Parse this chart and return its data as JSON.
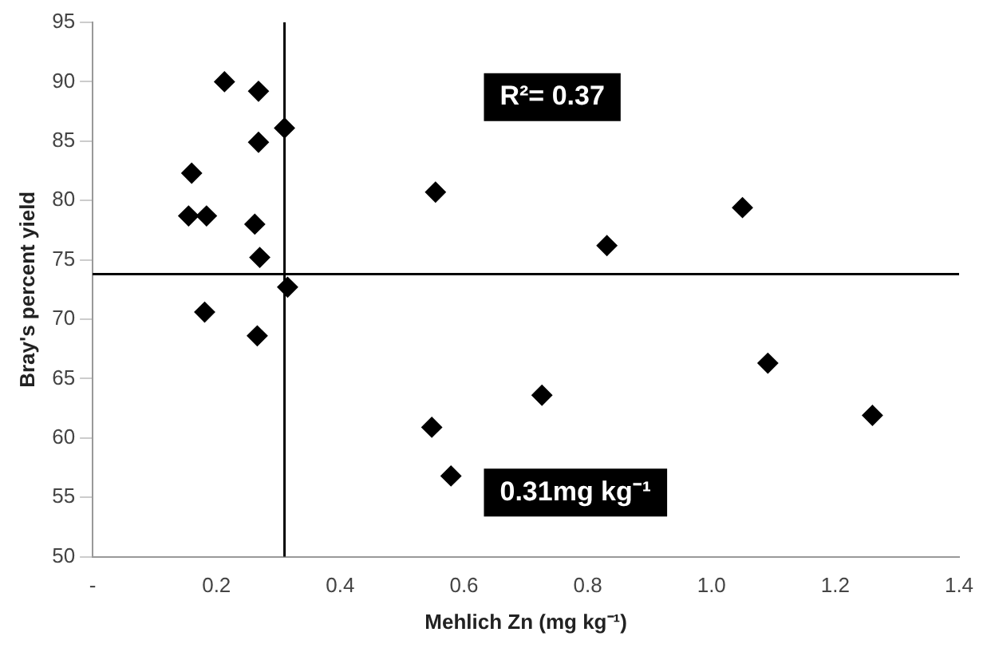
{
  "chart_data": {
    "type": "scatter",
    "xlabel": "Mehlich Zn (mg kg⁻¹)",
    "ylabel": "Bray's percent yield",
    "x": [
      0.213,
      0.268,
      0.31,
      0.268,
      0.16,
      0.155,
      0.184,
      0.262,
      0.27,
      0.315,
      0.181,
      0.266,
      0.554,
      0.548,
      0.579,
      0.831,
      1.05,
      0.726,
      1.091,
      1.26
    ],
    "series": [
      {
        "color": "#000000",
        "values": [
          90.0,
          89.2,
          86.1,
          84.9,
          82.3,
          78.7,
          78.7,
          78.0,
          75.2,
          72.7,
          70.6,
          68.6,
          80.7,
          60.9,
          56.8,
          76.2,
          79.4,
          63.6,
          66.3,
          61.9
        ]
      }
    ],
    "xlim": [
      0,
      1.4
    ],
    "ylim": [
      50,
      95
    ],
    "xticks": [
      {
        "value": 0,
        "label": "-"
      },
      0.2,
      0.4,
      0.6,
      0.8,
      {
        "value": 1,
        "label": "1.0"
      },
      1.2,
      1.4
    ],
    "yticks": [
      50,
      55,
      60,
      65,
      70,
      75,
      80,
      85,
      90,
      95
    ],
    "ref_lines": [
      {
        "axis": "x",
        "value": 0.31,
        "color": "#000000"
      },
      {
        "axis": "y",
        "value": 73.8,
        "color": "#000000"
      }
    ],
    "annotations": [
      "R²= 0.37",
      "0.31mg kg⁻¹"
    ],
    "marker": "diamond",
    "grid": false,
    "legend": false
  }
}
